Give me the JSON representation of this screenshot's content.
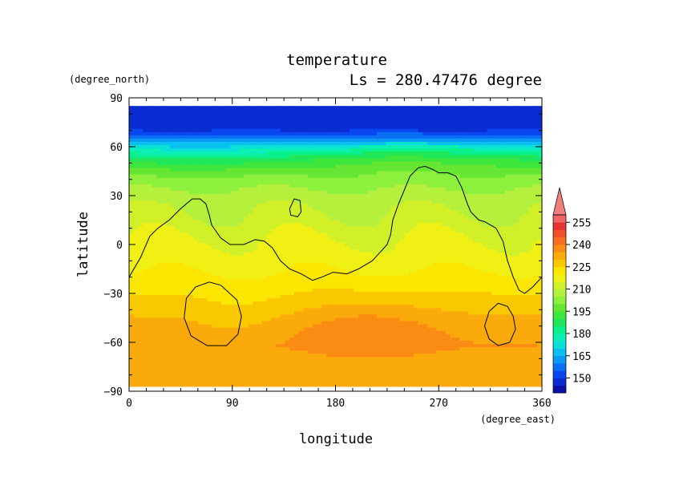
{
  "chart_data": {
    "type": "heatmap",
    "title": "temperature",
    "subtitle": "Ls = 280.47476 degree",
    "xlabel": "longitude",
    "ylabel": "latitude",
    "x_units": "(degree_east)",
    "y_units": "(degree_north)",
    "xlim": [
      0,
      360
    ],
    "ylim": [
      -90,
      90
    ],
    "data_lat_range": [
      -87,
      85
    ],
    "x_ticks": [
      0,
      90,
      180,
      270,
      360
    ],
    "x_tick_labels": [
      "0",
      "90",
      "180",
      "270",
      "360"
    ],
    "y_ticks": [
      90,
      60,
      30,
      0,
      -30,
      -60,
      -90
    ],
    "y_tick_labels": [
      "90",
      "60",
      "30",
      "0",
      "−30",
      "−60",
      "−90"
    ],
    "colorbar": {
      "levels": [
        140,
        145,
        150,
        155,
        160,
        165,
        170,
        175,
        180,
        185,
        190,
        195,
        200,
        205,
        210,
        215,
        220,
        225,
        230,
        235,
        240,
        245,
        250,
        255,
        260
      ],
      "tick_values": [
        150,
        165,
        180,
        195,
        210,
        225,
        240,
        255
      ],
      "tick_labels": [
        "150",
        "165",
        "180",
        "195",
        "210",
        "225",
        "240",
        "255"
      ],
      "colors": [
        "#0a10a8",
        "#0a2ad2",
        "#0a46f0",
        "#0a6ef5",
        "#0a98f5",
        "#0ac0f0",
        "#0ae0d8",
        "#0af0b4",
        "#0af08c",
        "#20e65a",
        "#3ce63c",
        "#64e632",
        "#8cf03c",
        "#b4f03c",
        "#d2f028",
        "#f0f014",
        "#fae600",
        "#fac800",
        "#faaa0a",
        "#fa8c14",
        "#f56e1e",
        "#f05028",
        "#e63232",
        "#f06464"
      ],
      "extend_max": true,
      "extend_color": "#f08080"
    },
    "meridional_profile": [
      [
        85,
        145
      ],
      [
        70,
        150
      ],
      [
        63,
        165
      ],
      [
        58,
        178
      ],
      [
        52,
        190
      ],
      [
        45,
        198
      ],
      [
        38,
        203
      ],
      [
        30,
        207
      ],
      [
        20,
        210
      ],
      [
        10,
        213
      ],
      [
        0,
        216
      ],
      [
        -10,
        218
      ],
      [
        -20,
        221
      ],
      [
        -28,
        224
      ],
      [
        -38,
        228
      ],
      [
        -52,
        233
      ],
      [
        -62,
        235
      ],
      [
        -72,
        232
      ],
      [
        -80,
        231
      ],
      [
        -87,
        232
      ]
    ],
    "contours": [
      [
        [
          0,
          -20
        ],
        [
          10,
          -8
        ],
        [
          18,
          5
        ],
        [
          25,
          10
        ],
        [
          35,
          15
        ],
        [
          45,
          22
        ],
        [
          55,
          28
        ],
        [
          62,
          28
        ],
        [
          67,
          25
        ],
        [
          70,
          18
        ],
        [
          72,
          12
        ],
        [
          80,
          4
        ],
        [
          88,
          0
        ],
        [
          100,
          0
        ],
        [
          110,
          3
        ],
        [
          118,
          2
        ],
        [
          125,
          -2
        ],
        [
          132,
          -10
        ],
        [
          140,
          -15
        ],
        [
          150,
          -18
        ],
        [
          160,
          -22
        ],
        [
          168,
          -20
        ],
        [
          178,
          -17
        ],
        [
          190,
          -18
        ],
        [
          200,
          -15
        ],
        [
          212,
          -10
        ],
        [
          220,
          -4
        ],
        [
          225,
          0
        ],
        [
          228,
          6
        ],
        [
          230,
          15
        ],
        [
          235,
          25
        ],
        [
          238,
          30
        ],
        [
          245,
          42
        ],
        [
          252,
          47
        ],
        [
          258,
          48
        ],
        [
          265,
          46
        ],
        [
          270,
          44
        ],
        [
          278,
          44
        ],
        [
          285,
          42
        ],
        [
          290,
          35
        ],
        [
          295,
          25
        ],
        [
          298,
          20
        ],
        [
          305,
          15
        ],
        [
          310,
          14
        ],
        [
          320,
          10
        ],
        [
          326,
          2
        ],
        [
          330,
          -10
        ],
        [
          335,
          -20
        ],
        [
          340,
          -28
        ],
        [
          345,
          -30
        ],
        [
          352,
          -26
        ],
        [
          360,
          -20
        ]
      ],
      [
        [
          140,
          22
        ],
        [
          144,
          28
        ],
        [
          149,
          27
        ],
        [
          150,
          20
        ],
        [
          147,
          17
        ],
        [
          141,
          18
        ],
        [
          140,
          22
        ]
      ],
      [
        [
          70,
          -23
        ],
        [
          80,
          -25
        ],
        [
          94,
          -34
        ],
        [
          98,
          -44
        ],
        [
          95,
          -55
        ],
        [
          85,
          -62
        ],
        [
          68,
          -62
        ],
        [
          54,
          -56
        ],
        [
          48,
          -45
        ],
        [
          50,
          -33
        ],
        [
          58,
          -26
        ],
        [
          70,
          -23
        ]
      ],
      [
        [
          322,
          -36
        ],
        [
          330,
          -38
        ],
        [
          335,
          -44
        ],
        [
          337,
          -52
        ],
        [
          332,
          -60
        ],
        [
          322,
          -62
        ],
        [
          314,
          -58
        ],
        [
          310,
          -50
        ],
        [
          314,
          -41
        ],
        [
          322,
          -36
        ]
      ]
    ]
  }
}
